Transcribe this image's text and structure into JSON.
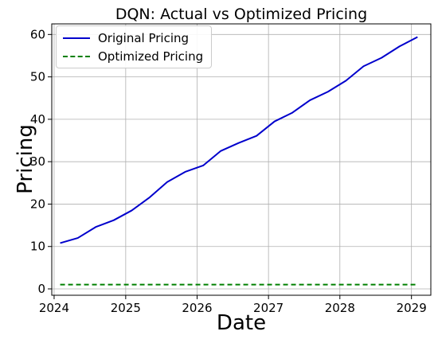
{
  "chart_data": {
    "type": "line",
    "title": "DQN: Actual vs Optimized Pricing",
    "xlabel": "Date",
    "ylabel": "Pricing",
    "xlim": [
      "2023-12-20",
      "2029-04-10"
    ],
    "ylim": [
      -1.5,
      62.5
    ],
    "x_ticks": [
      "2024",
      "2025",
      "2026",
      "2027",
      "2028",
      "2029"
    ],
    "y_ticks": [
      0,
      10,
      20,
      30,
      40,
      50,
      60
    ],
    "grid": true,
    "legend_position": "top-left",
    "x": [
      "2024-02-01",
      "2024-05-01",
      "2024-08-01",
      "2024-11-01",
      "2025-02-01",
      "2025-05-01",
      "2025-08-01",
      "2025-11-01",
      "2026-02-01",
      "2026-05-01",
      "2026-08-01",
      "2026-11-01",
      "2027-02-01",
      "2027-05-01",
      "2027-08-01",
      "2027-11-01",
      "2028-02-01",
      "2028-05-01",
      "2028-08-01",
      "2028-11-01",
      "2029-02-01"
    ],
    "series": [
      {
        "name": "Original Pricing",
        "color": "#0000cc",
        "style": "solid",
        "values": [
          10.8,
          12.0,
          14.6,
          16.2,
          18.5,
          21.5,
          25.2,
          27.6,
          29.1,
          32.5,
          34.4,
          36.1,
          39.5,
          41.5,
          44.5,
          46.5,
          49.1,
          52.5,
          54.5,
          57.2,
          59.4
        ]
      },
      {
        "name": "Optimized Pricing",
        "color": "#008000",
        "style": "dashed",
        "values": [
          1,
          1,
          1,
          1,
          1,
          1,
          1,
          1,
          1,
          1,
          1,
          1,
          1,
          1,
          1,
          1,
          1,
          1,
          1,
          1,
          1
        ]
      }
    ]
  }
}
